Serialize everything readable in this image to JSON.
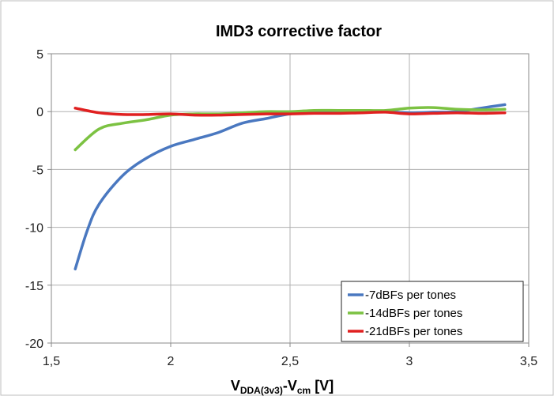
{
  "chart_data": {
    "type": "line",
    "title": "IMD3  corrective factor",
    "xlabel": {
      "main": "V",
      "sub1": "DDA(3v3)",
      "mid": "-V",
      "sub2": "cm",
      "unit": " [V]"
    },
    "ylabel": "",
    "xlim": [
      1.5,
      3.5
    ],
    "ylim": [
      -20,
      5
    ],
    "x_ticks": [
      1.5,
      2,
      2.5,
      3,
      3.5
    ],
    "x_tick_labels": [
      "1,5",
      "2",
      "2,5",
      "3",
      "3,5"
    ],
    "y_ticks": [
      -20,
      -15,
      -10,
      -5,
      0,
      5
    ],
    "y_tick_labels": [
      "-20",
      "-15",
      "-10",
      "-5",
      "0",
      "5"
    ],
    "grid": true,
    "legend_position": "bottom-right",
    "series": [
      {
        "name": "-7dBFs per tones",
        "color": "#4a78c0",
        "x": [
          1.6,
          1.65,
          1.7,
          1.8,
          1.9,
          2.0,
          2.1,
          2.2,
          2.3,
          2.4,
          2.5,
          2.6,
          2.7,
          2.8,
          2.9,
          3.0,
          3.1,
          3.2,
          3.3,
          3.4
        ],
        "y": [
          -13.6,
          -10.3,
          -8.0,
          -5.5,
          -4.0,
          -3.0,
          -2.4,
          -1.8,
          -1.0,
          -0.6,
          -0.2,
          -0.1,
          0.0,
          0.0,
          0.0,
          -0.1,
          -0.05,
          0.0,
          0.3,
          0.6
        ]
      },
      {
        "name": "-14dBFs per tones",
        "color": "#7cc242",
        "x": [
          1.6,
          1.7,
          1.8,
          1.9,
          2.0,
          2.1,
          2.2,
          2.3,
          2.4,
          2.5,
          2.6,
          2.7,
          2.8,
          2.9,
          3.0,
          3.1,
          3.2,
          3.3,
          3.4
        ],
        "y": [
          -3.3,
          -1.5,
          -1.0,
          -0.7,
          -0.3,
          -0.2,
          -0.2,
          -0.1,
          0.0,
          0.0,
          0.1,
          0.1,
          0.1,
          0.1,
          0.3,
          0.35,
          0.2,
          0.15,
          0.2
        ]
      },
      {
        "name": "-21dBFs per tones",
        "color": "#e02020",
        "x": [
          1.6,
          1.7,
          1.8,
          1.9,
          2.0,
          2.1,
          2.2,
          2.3,
          2.4,
          2.5,
          2.6,
          2.7,
          2.8,
          2.9,
          3.0,
          3.1,
          3.2,
          3.3,
          3.4
        ],
        "y": [
          0.3,
          -0.1,
          -0.25,
          -0.25,
          -0.2,
          -0.3,
          -0.3,
          -0.25,
          -0.2,
          -0.2,
          -0.15,
          -0.15,
          -0.1,
          -0.05,
          -0.2,
          -0.15,
          -0.1,
          -0.15,
          -0.1
        ]
      }
    ]
  }
}
